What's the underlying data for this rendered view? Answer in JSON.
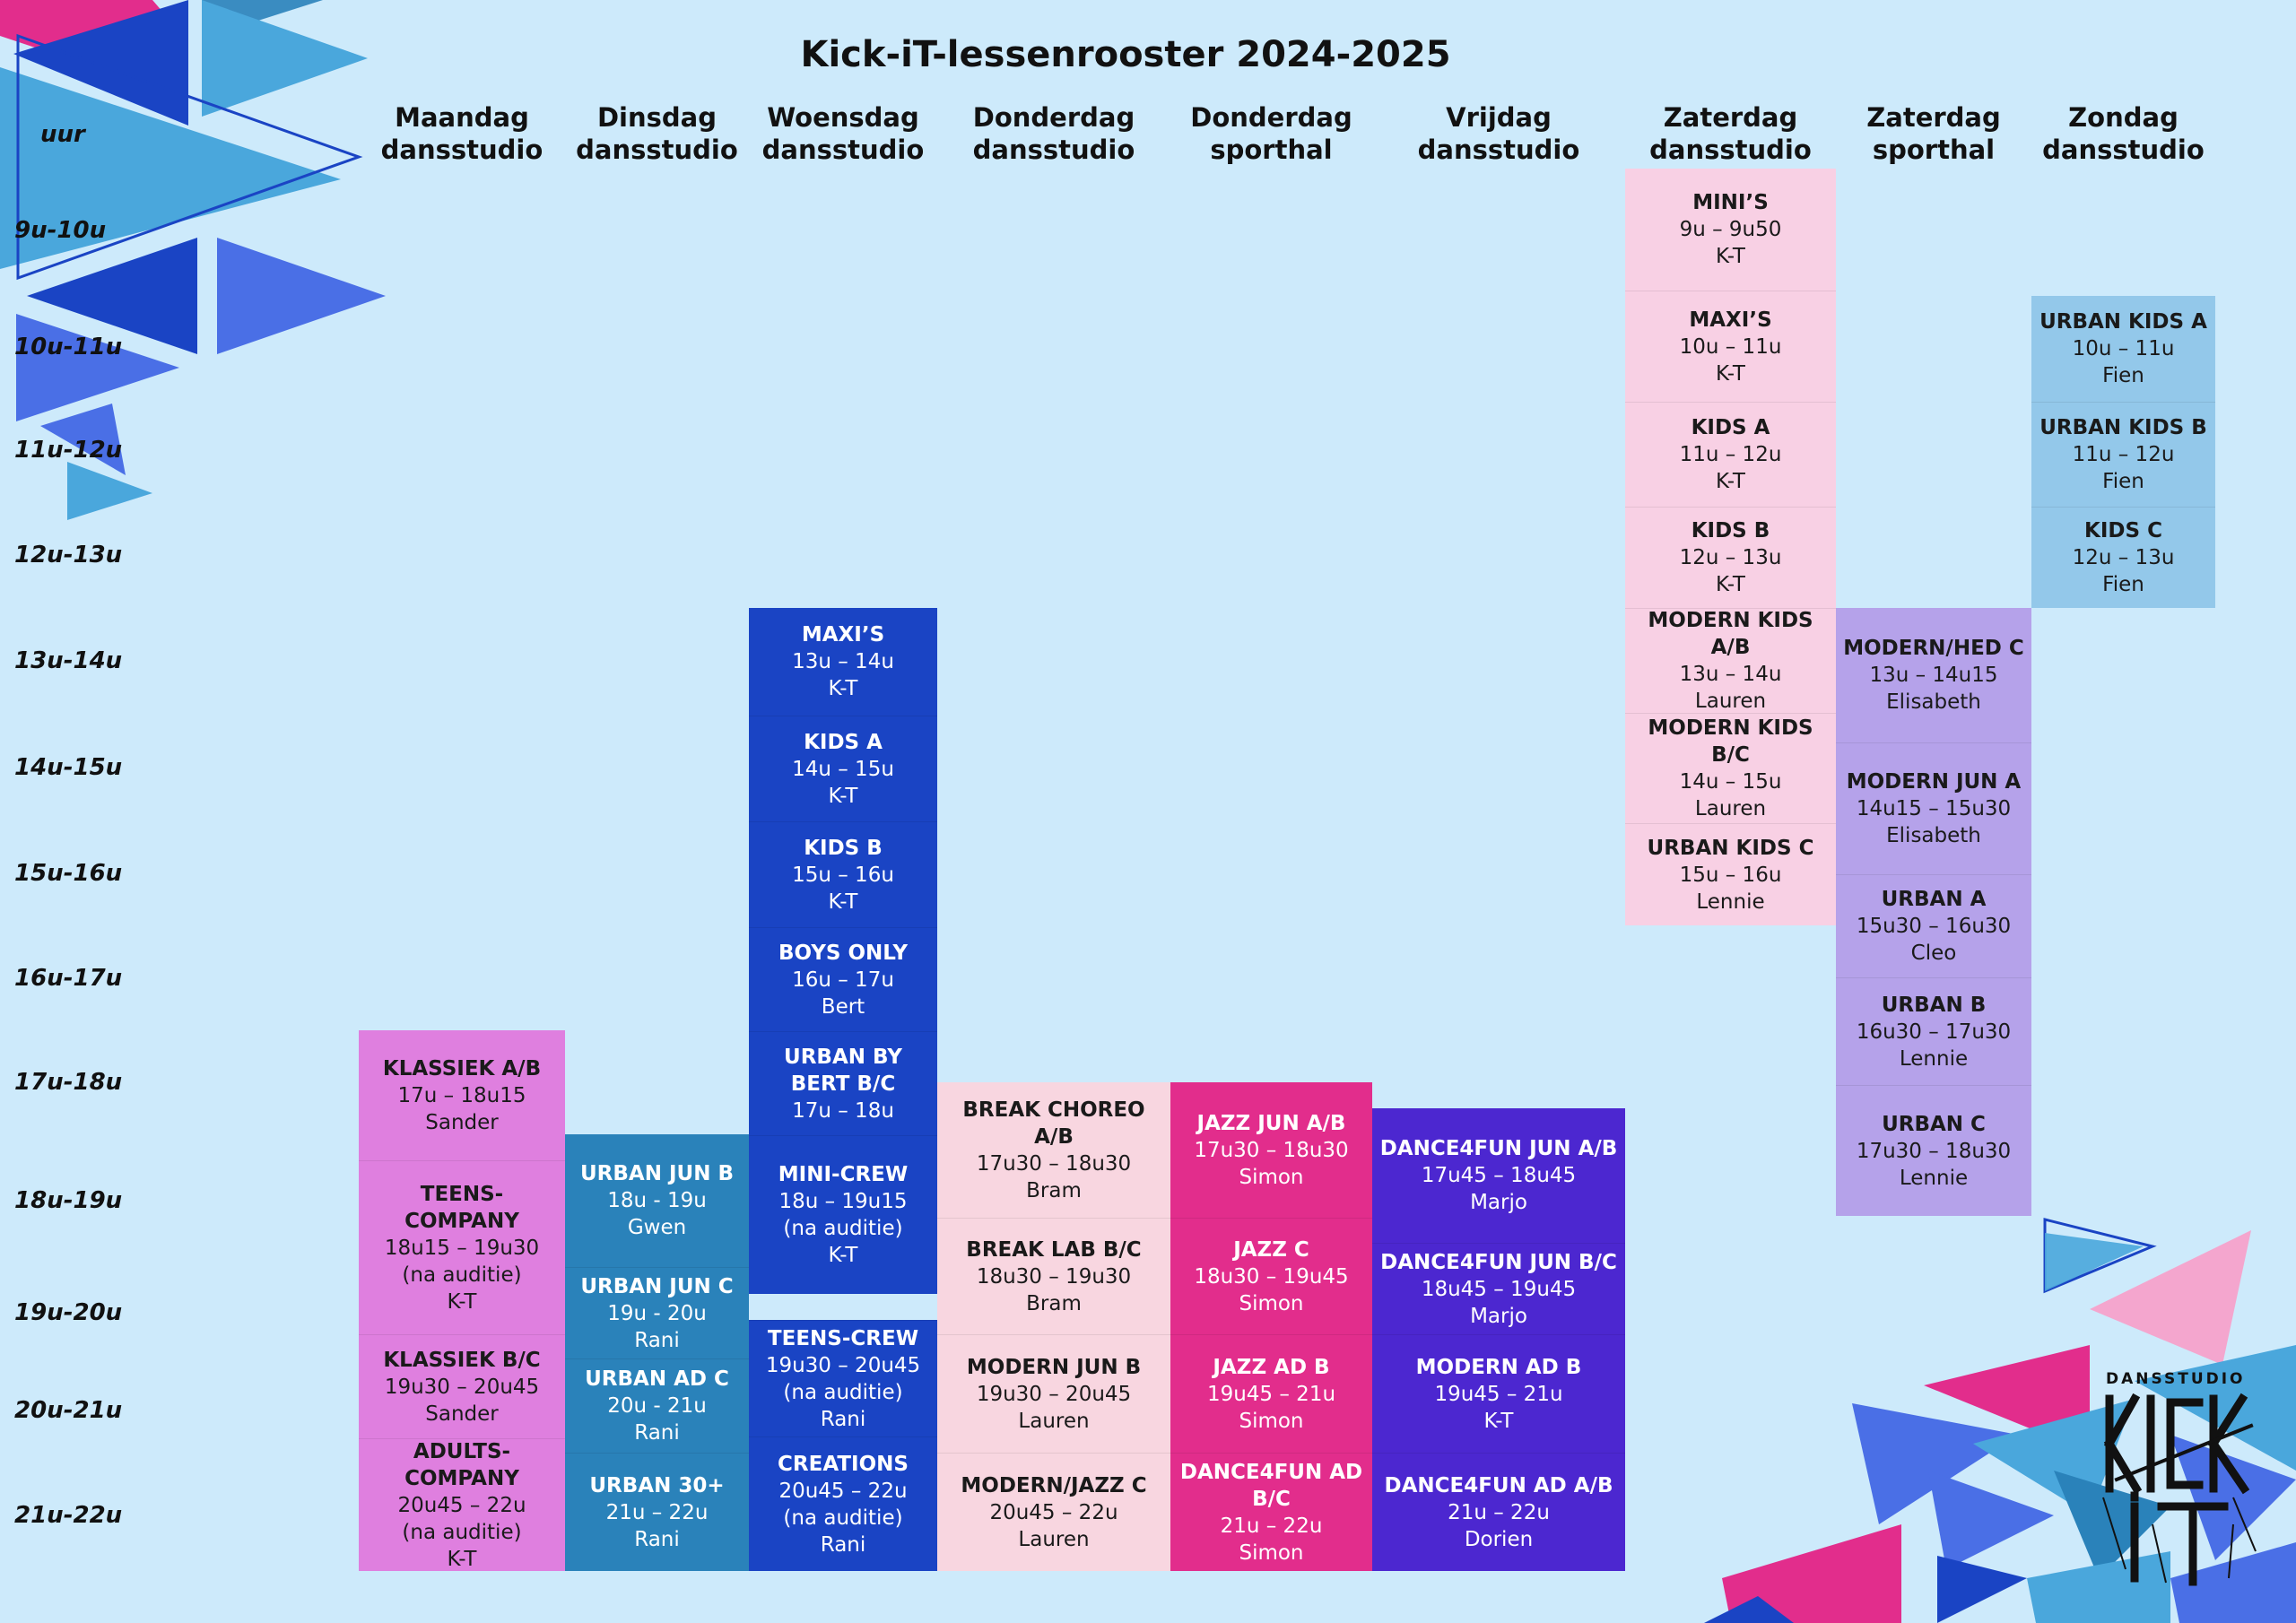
{
  "title": "Kick-iT-lessenrooster 2024-2025",
  "uur_label": "uur",
  "time_slots": [
    "9u-10u",
    "10u-11u",
    "11u-12u",
    "12u-13u",
    "13u-14u",
    "14u-15u",
    "15u-16u",
    "16u-17u",
    "17u-18u",
    "18u-19u",
    "19u-20u",
    "20u-21u",
    "21u-22u"
  ],
  "colors": {
    "background": "#cdeafb",
    "magenta": "#df7fdf",
    "teal": "#2a82ba",
    "royal_blue": "#1a44c4",
    "light_pink": "#f8d6e0",
    "hot_pink": "#e22d8c",
    "violet": "#4c27d0",
    "pale_pink": "#f8d0e4",
    "lavender": "#b5a2ea",
    "sky_blue": "#93c8ea"
  },
  "days": [
    {
      "day": "Maandag",
      "location": "dansstudio",
      "lessons": [
        {
          "name": "KLASSIEK A/B",
          "time": "17u – 18u15",
          "teacher": "Sander"
        },
        {
          "name": "TEENS-COMPANY",
          "time": "18u15 – 19u30",
          "note": "(na auditie)",
          "teacher": "K-T"
        },
        {
          "name": "KLASSIEK B/C",
          "time": "19u30 – 20u45",
          "teacher": "Sander"
        },
        {
          "name": "ADULTS-COMPANY",
          "time": "20u45 – 22u",
          "note": "(na auditie)",
          "teacher": "K-T"
        }
      ]
    },
    {
      "day": "Dinsdag",
      "location": "dansstudio",
      "lessons": [
        {
          "name": "URBAN JUN B",
          "time": "18u - 19u",
          "teacher": "Gwen"
        },
        {
          "name": "URBAN JUN C",
          "time": "19u - 20u",
          "teacher": "Rani"
        },
        {
          "name": "URBAN AD C",
          "time": "20u - 21u",
          "teacher": "Rani"
        },
        {
          "name": "URBAN 30+",
          "time": "21u – 22u",
          "teacher": "Rani"
        }
      ]
    },
    {
      "day": "Woensdag",
      "location": "dansstudio",
      "lessons": [
        {
          "name": "MAXI’S",
          "time": "13u – 14u",
          "teacher": "K-T"
        },
        {
          "name": "KIDS A",
          "time": "14u – 15u",
          "teacher": "K-T"
        },
        {
          "name": "KIDS B",
          "time": "15u – 16u",
          "teacher": "K-T"
        },
        {
          "name": "BOYS ONLY",
          "time": "16u – 17u",
          "teacher": "Bert"
        },
        {
          "name": "URBAN BY BERT B/C",
          "time": "17u – 18u"
        },
        {
          "name": "MINI-CREW",
          "time": "18u – 19u15",
          "note": "(na auditie)",
          "teacher": "K-T"
        },
        {
          "name": "TEENS-CREW",
          "time": "19u30 – 20u45",
          "note": "(na auditie)",
          "teacher": "Rani"
        },
        {
          "name": "CREATIONS",
          "time": "20u45 – 22u",
          "note": "(na auditie)",
          "teacher": "Rani"
        }
      ]
    },
    {
      "day": "Donderdag",
      "location": "dansstudio",
      "lessons": [
        {
          "name": "BREAK CHOREO A/B",
          "time": "17u30 – 18u30",
          "teacher": "Bram"
        },
        {
          "name": "BREAK LAB B/C",
          "time": "18u30 – 19u30",
          "teacher": "Bram"
        },
        {
          "name": "MODERN JUN B",
          "time": "19u30 – 20u45",
          "teacher": "Lauren"
        },
        {
          "name": "MODERN/JAZZ C",
          "time": "20u45 – 22u",
          "teacher": "Lauren"
        }
      ]
    },
    {
      "day": "Donderdag",
      "location": "sporthal",
      "lessons": [
        {
          "name": "JAZZ JUN A/B",
          "time": "17u30 – 18u30",
          "teacher": "Simon"
        },
        {
          "name": "JAZZ C",
          "time": "18u30 – 19u45",
          "teacher": "Simon"
        },
        {
          "name": "JAZZ AD B",
          "time": "19u45 – 21u",
          "teacher": "Simon"
        },
        {
          "name": "DANCE4FUN AD B/C",
          "time": "21u – 22u",
          "teacher": "Simon"
        }
      ]
    },
    {
      "day": "Vrijdag",
      "location": "dansstudio",
      "lessons": [
        {
          "name": "DANCE4FUN JUN A/B",
          "time": "17u45 – 18u45",
          "teacher": "Marjo"
        },
        {
          "name": "DANCE4FUN JUN B/C",
          "time": "18u45 – 19u45",
          "teacher": "Marjo"
        },
        {
          "name": "MODERN AD B",
          "time": "19u45 – 21u",
          "teacher": "K-T"
        },
        {
          "name": "DANCE4FUN AD A/B",
          "time": "21u – 22u",
          "teacher": "Dorien"
        }
      ]
    },
    {
      "day": "Zaterdag",
      "location": "dansstudio",
      "lessons": [
        {
          "name": "MINI’S",
          "time": "9u – 9u50",
          "teacher": "K-T"
        },
        {
          "name": "MAXI’S",
          "time": "10u – 11u",
          "teacher": "K-T"
        },
        {
          "name": "KIDS A",
          "time": "11u – 12u",
          "teacher": "K-T"
        },
        {
          "name": "KIDS B",
          "time": "12u – 13u",
          "teacher": "K-T"
        },
        {
          "name": "MODERN KIDS A/B",
          "time": "13u – 14u",
          "teacher": "Lauren"
        },
        {
          "name": "MODERN KIDS B/C",
          "time": "14u – 15u",
          "teacher": "Lauren"
        },
        {
          "name": "URBAN KIDS C",
          "time": "15u – 16u",
          "teacher": "Lennie"
        }
      ]
    },
    {
      "day": "Zaterdag",
      "location": "sporthal",
      "lessons": [
        {
          "name": "MODERN/HED C",
          "time": "13u – 14u15",
          "teacher": "Elisabeth"
        },
        {
          "name": "MODERN JUN A",
          "time": "14u15 – 15u30",
          "teacher": "Elisabeth"
        },
        {
          "name": "URBAN A",
          "time": "15u30 – 16u30",
          "teacher": "Cleo"
        },
        {
          "name": "URBAN B",
          "time": "16u30 – 17u30",
          "teacher": "Lennie"
        },
        {
          "name": "URBAN C",
          "time": "17u30 – 18u30",
          "teacher": "Lennie"
        }
      ]
    },
    {
      "day": "Zondag",
      "location": "dansstudio",
      "lessons": [
        {
          "name": "URBAN KIDS A",
          "time": "10u – 11u",
          "teacher": "Fien"
        },
        {
          "name": "URBAN KIDS B",
          "time": "11u – 12u",
          "teacher": "Fien"
        },
        {
          "name": "KIDS C",
          "time": "12u – 13u",
          "teacher": "Fien"
        }
      ]
    }
  ],
  "logo": {
    "text": "DANSSTUDIO",
    "wordmark": "KICK iT"
  }
}
